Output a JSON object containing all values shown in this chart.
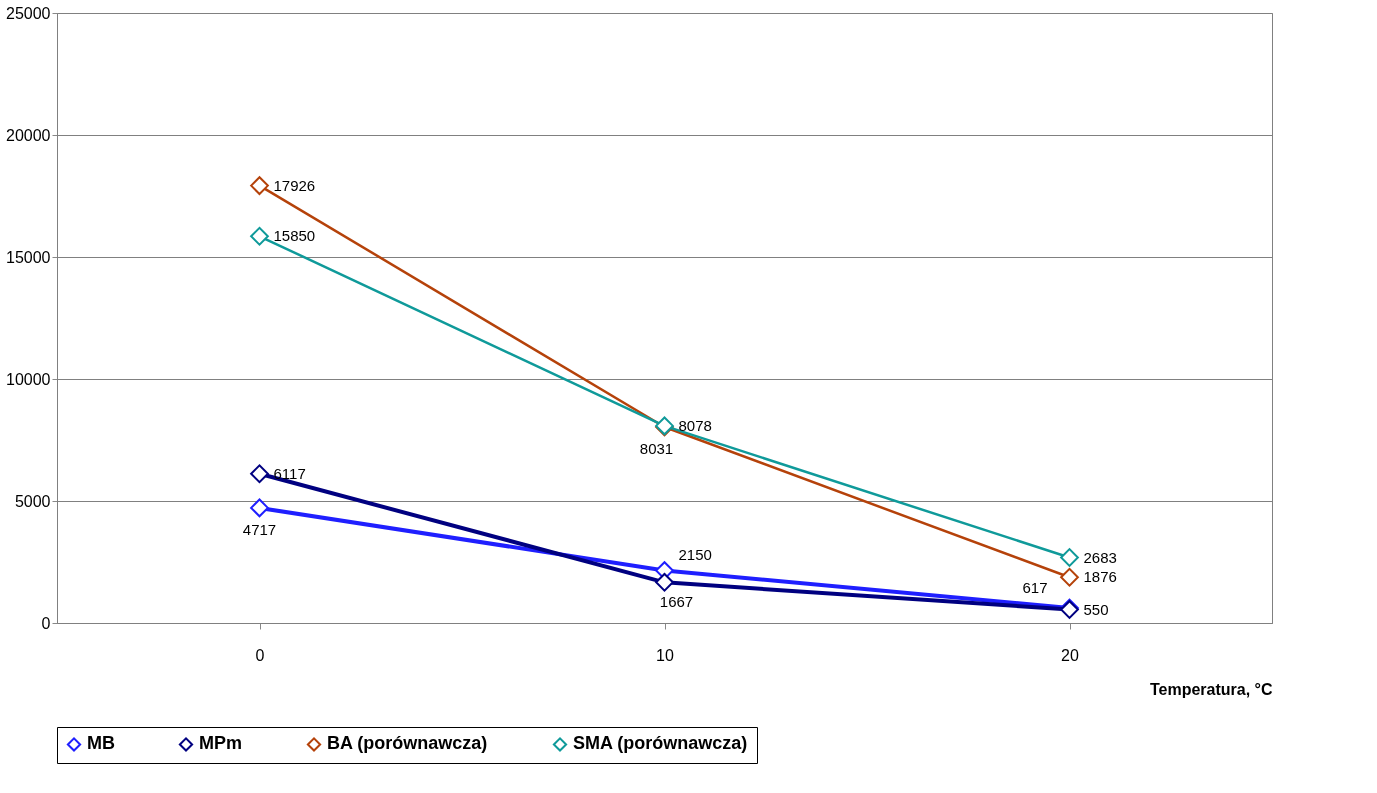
{
  "chart_data": {
    "type": "line",
    "xlabel": "Temperatura, °C",
    "categories": [
      "0",
      "10",
      "20"
    ],
    "series": [
      {
        "name": "MB",
        "color": "#1f1fff",
        "values": [
          4717,
          2150,
          617
        ]
      },
      {
        "name": "MPm",
        "color": "#000080",
        "values": [
          6117,
          1667,
          550
        ]
      },
      {
        "name": "BA (porównawcza)",
        "color": "#b5420a",
        "values": [
          17926,
          8031,
          1876
        ]
      },
      {
        "name": "SMA (porównawcza)",
        "color": "#0f9a9a",
        "values": [
          15850,
          8078,
          2683
        ]
      }
    ],
    "ylim": [
      0,
      25000
    ],
    "yticks": [
      0,
      5000,
      10000,
      15000,
      20000,
      25000
    ],
    "grid": "y",
    "legend": "bottom",
    "marker": "diamond",
    "data_labels": true
  }
}
